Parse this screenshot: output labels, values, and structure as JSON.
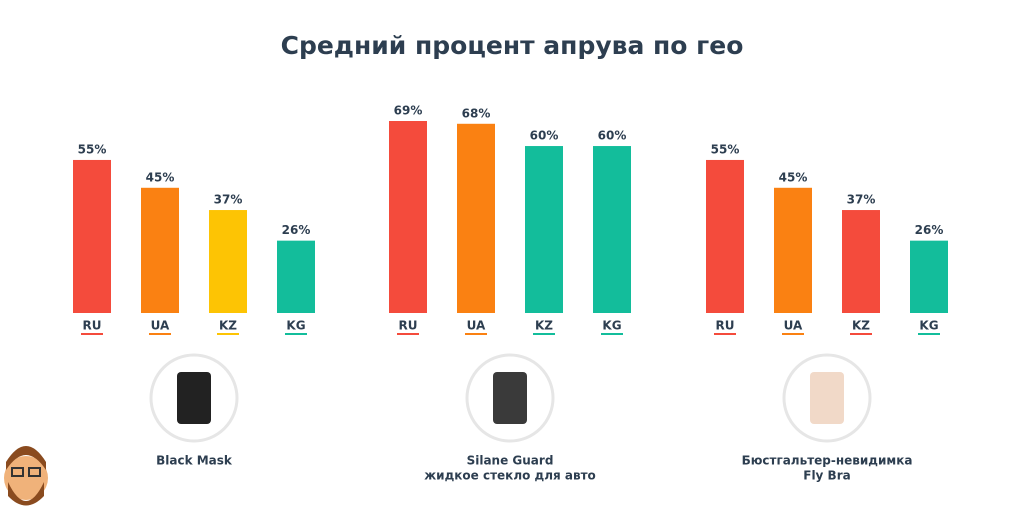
{
  "title": "Средний процент апрува по гео",
  "chart_data": [
    {
      "type": "bar",
      "categories": [
        "RU",
        "UA",
        "KZ",
        "KG"
      ],
      "values": [
        55,
        45,
        37,
        26
      ],
      "value_labels": [
        "55%",
        "45%",
        "37%",
        "26%"
      ],
      "colors": [
        "#f44b3c",
        "#fa8112",
        "#fdc404",
        "#13bd9b"
      ],
      "caption": [
        "Black Mask"
      ]
    },
    {
      "type": "bar",
      "categories": [
        "RU",
        "UA",
        "KZ",
        "KG"
      ],
      "values": [
        69,
        68,
        60,
        60
      ],
      "value_labels": [
        "69%",
        "68%",
        "60%",
        "60%"
      ],
      "colors": [
        "#f44b3c",
        "#fa8112",
        "#13bd9b",
        "#13bd9b"
      ],
      "caption": [
        "Silane Guard",
        "жидкое стекло для авто"
      ]
    },
    {
      "type": "bar",
      "categories": [
        "RU",
        "UA",
        "KZ",
        "KG"
      ],
      "values": [
        55,
        45,
        37,
        26
      ],
      "value_labels": [
        "55%",
        "45%",
        "37%",
        "26%"
      ],
      "colors": [
        "#f44b3c",
        "#fa8112",
        "#f44b3c",
        "#13bd9b"
      ],
      "caption": [
        "Бюстгальтер-невидимка",
        "Fly Bra"
      ]
    }
  ]
}
